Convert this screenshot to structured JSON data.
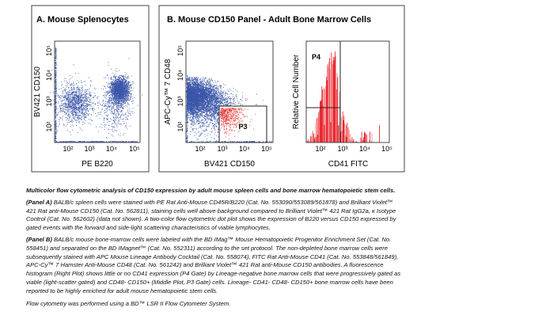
{
  "panel_a": {
    "title": "A. Mouse Splenocytes",
    "xlabel": "PE  B220",
    "ylabel": "BV421  CD150",
    "ticks": [
      "10²",
      "10³",
      "10⁴",
      "10⁵"
    ],
    "dot_color": "#3a56a8"
  },
  "panel_b": {
    "title": "B. Mouse CD150 Panel - Adult Bone Marrow Cells",
    "dot_plot": {
      "xlabel": "BV421  CD150",
      "ylabel": "APC-Cy™ 7  CD48",
      "ticks": [
        "10²",
        "10³",
        "10⁴",
        "10⁵"
      ],
      "gate_label": "P3",
      "gated_color": "#e8312f"
    },
    "histogram": {
      "xlabel": "CD41  FITC",
      "ylabel": "Relative Cell Number",
      "ticks": [
        "10²",
        "10³",
        "10⁴",
        "10⁵"
      ],
      "gate_label": "P4",
      "fill_color": "#f08080",
      "line_color": "#e8141e"
    }
  },
  "caption": {
    "title": "Multicolor flow cytometric analysis of CD150 expression by adult mouse spleen cells and bone marrow hematopoietic stem cells.",
    "panel_a_lines": [
      [
        "(Panel A)",
        " BALB/c spleen cells were stained with PE Rat Anti-Mouse CD45R/B220 (Cat. No. 553090/553089/561878) and Brilliant Violet™"
      ],
      [
        "",
        "421 Rat anti-Mouse CD150 (Cat. No. 562811), staining cells well above background compared to Brilliant Violet™ 421 Rat IgG2a, κ Isotype"
      ],
      [
        "",
        "Control (Cat. No. 562602) (data not shown). A two-color flow cytometric dot plot shows the expression of B220 versus CD150 expressed by"
      ],
      [
        "",
        "gated events with the forward and side-light scattering characteristics of viable lymphocytes."
      ]
    ],
    "panel_b_lines": [
      [
        "(Panel B)",
        " BALB/c mouse bone-marrow cells were labeled with the BD IMag™ Mouse Hematopoietic Progenitor Enrichment Set (Cat. No."
      ],
      [
        "",
        "558451) and separated on the BD IMagnet™ (Cat. No. 552311) according to the set protocol. The non-depleted bone marrow cells were"
      ],
      [
        "",
        "subsequently stained with APC Mouse Lineage Antibody Cocktail (Cat. No. 558074), FITC Rat Anti-Mouse CD41 (Cat. No. 553848/561849),"
      ],
      [
        "",
        "APC-Cy™ 7 Hamster Anti-Mouse CD48 (Cat. No. 561242) and Brilliant Violet™ 421 Rat anti-Mouse CD150 antibodies. A fluorescence"
      ],
      [
        "",
        "histogram (Right Plot) shows little or no CD41 expression (P4 Gate) by Lineage-negative bone marrow cells that were progressively gated as"
      ],
      [
        "",
        "viable (light-scatter gated) and CD48- CD150+ (Middle Plot, P3 Gate) cells. Lineage- CD41- CD48- CD150+ bone marrow cells have been"
      ],
      [
        "",
        "reported to be highly enriched for adult mouse hematopoietic stem cells."
      ]
    ],
    "footer": "Flow cytometry was performed using a BD™ LSR II Flow Cytometer System."
  }
}
